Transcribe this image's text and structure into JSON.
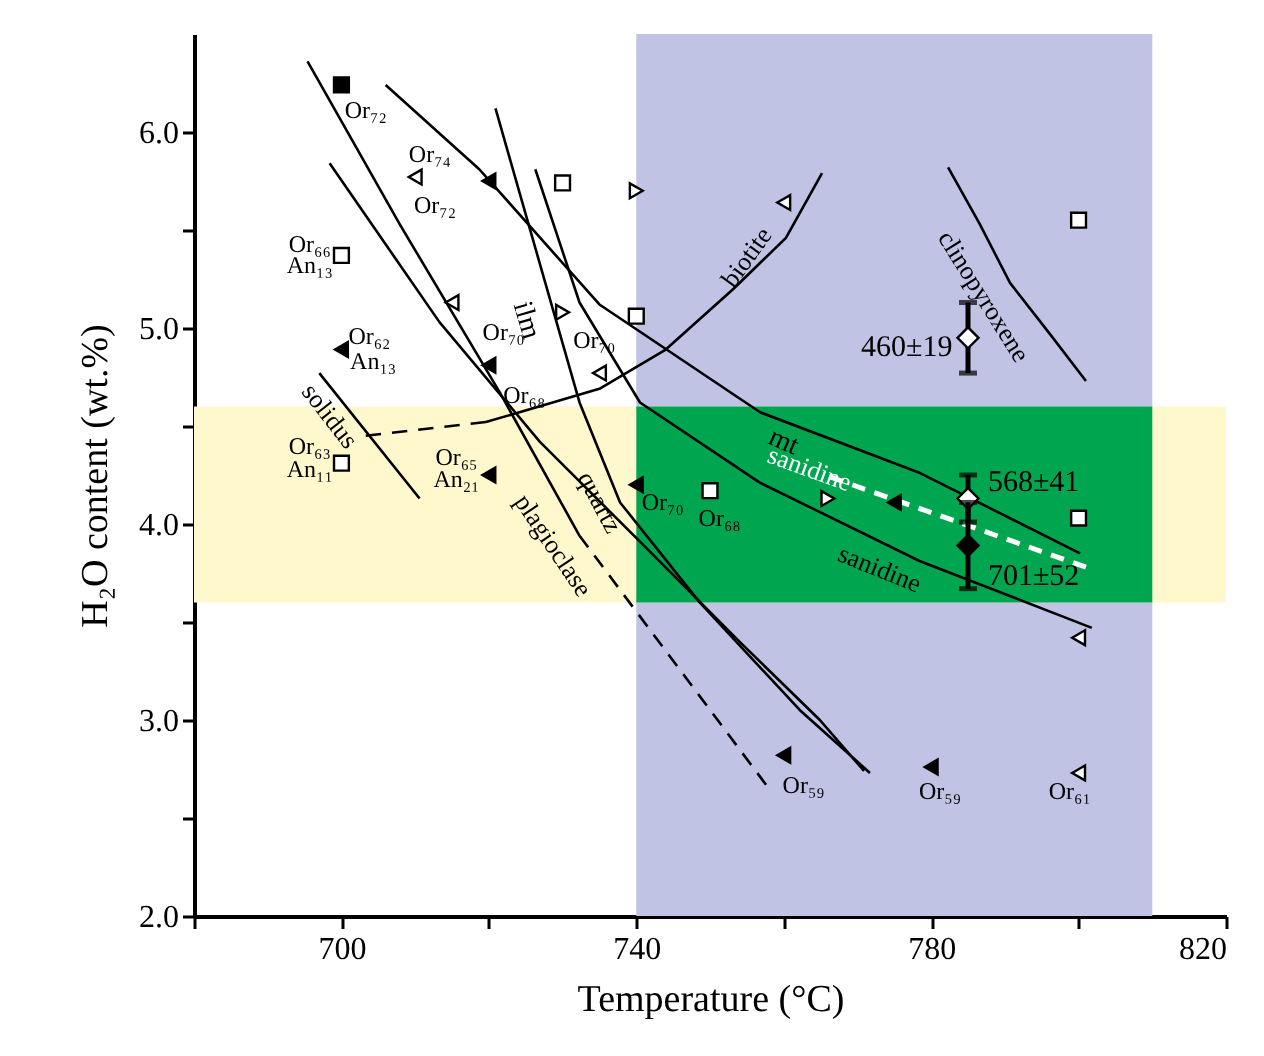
{
  "chart_data": {
    "type": "scatter",
    "xlabel": "Temperature (°C)",
    "ylabel": "H₂O content (wt.%)",
    "xlim": [
      680,
      820
    ],
    "ylim": [
      2,
      6.5
    ],
    "xticks": [
      {
        "value": 680,
        "label": null
      },
      700,
      {
        "value": 720,
        "label": null
      },
      740,
      {
        "value": 760,
        "label": null
      },
      780,
      {
        "value": 800,
        "label": null
      },
      820
    ],
    "yticks": [
      {
        "value": 2,
        "label": "2.0"
      },
      {
        "value": 2.5,
        "label": null
      },
      {
        "value": 3,
        "label": "3.0"
      },
      {
        "value": 3.5,
        "label": null
      },
      {
        "value": 4,
        "label": "4.0"
      },
      {
        "value": 4.5,
        "label": null
      },
      {
        "value": 5,
        "label": "5.0"
      },
      {
        "value": 5.5,
        "label": null
      },
      {
        "value": 6,
        "label": "6.0"
      }
    ],
    "grid": false,
    "bands": [
      {
        "axis": "x",
        "from": 740,
        "to": 810,
        "color": "#c0c3e3"
      },
      {
        "axis": "y",
        "from": 3.6,
        "to": 4.6,
        "color": "#fff8cc"
      }
    ],
    "series": [
      {
        "type": "line",
        "color": "#000000",
        "line_style": "solid",
        "x": [
          706.0,
          718.7,
          735.0,
          756.8,
          778.5,
          800.2
        ],
        "values": [
          6.24,
          5.81,
          5.12,
          4.57,
          4.26,
          3.85
        ]
      },
      {
        "type": "line",
        "color": "#000000",
        "line_style": "solid",
        "x": [
          726.3,
          732.3,
          740.5,
          756.8,
          778.5,
          801.8
        ],
        "values": [
          5.81,
          5.13,
          4.62,
          4.21,
          3.81,
          3.47
        ]
      },
      {
        "type": "line",
        "color": "#000000",
        "line_style": "solid",
        "x": [
          720.9,
          726.9,
          732.3,
          737.8,
          748.6,
          762.2,
          771.7
        ],
        "values": [
          6.12,
          5.33,
          4.62,
          4.11,
          3.6,
          3.05,
          2.73
        ]
      },
      {
        "type": "line",
        "color": "#000000",
        "line_style": "solid",
        "x": [
          698.4,
          713.3,
          726.9,
          740.5,
          754.0,
          764.9,
          770.9
        ],
        "values": [
          5.84,
          5.03,
          4.42,
          3.91,
          3.4,
          3.0,
          2.74
        ]
      },
      {
        "type": "line",
        "color": "#000000",
        "line_style": "solid",
        "x": [
          695.4,
          707.9,
          721.5,
          732.3
        ],
        "values": [
          6.36,
          5.53,
          4.67,
          3.94
        ]
      },
      {
        "type": "line",
        "color": "#000000",
        "line_style": "dashed",
        "x": [
          732.3,
          757.6
        ],
        "values": [
          3.94,
          2.67
        ]
      },
      {
        "type": "line",
        "color": "#000000",
        "line_style": "solid",
        "x": [
          697.0,
          710.6
        ],
        "values": [
          4.77,
          4.13
        ]
      },
      {
        "type": "line",
        "color": "#000000",
        "line_style": "dashed",
        "x": [
          703.3,
          719.6
        ],
        "values": [
          4.45,
          4.52
        ]
      },
      {
        "type": "line",
        "color": "#000000",
        "line_style": "solid",
        "x": [
          719.6,
          735.0,
          744.0,
          753.2,
          760.3,
          765.2
        ],
        "values": [
          4.52,
          4.69,
          4.89,
          5.2,
          5.46,
          5.79
        ]
      },
      {
        "type": "line",
        "color": "#000000",
        "line_style": "solid",
        "x": [
          782.3,
          786.6,
          790.7,
          796.1,
          801.0
        ],
        "values": [
          5.82,
          5.53,
          5.23,
          4.97,
          4.73
        ]
      },
      {
        "type": "line",
        "color": "#ffffff",
        "line_style": "dashed",
        "x": [
          766.3,
          801.0
        ],
        "values": [
          4.24,
          3.78
        ]
      },
      {
        "marker": "square",
        "color": "#000000",
        "x": [
          700
        ],
        "values": [
          6.24
        ]
      },
      {
        "marker": "square",
        "color": "#ffffff",
        "x": [
          730,
          700,
          740,
          700,
          750,
          800,
          800
        ],
        "values": [
          5.74,
          5.37,
          5.06,
          4.31,
          4.17,
          5.55,
          4.03
        ]
      },
      {
        "marker": "triangle-left",
        "color": "#000000",
        "x": [
          720,
          700,
          720,
          720,
          740,
          775,
          760,
          780
        ],
        "values": [
          5.75,
          4.89,
          4.81,
          4.25,
          4.2,
          4.11,
          2.82,
          2.76
        ]
      },
      {
        "marker": "triangle-left",
        "color": "#ffffff",
        "x": [
          710,
          715,
          735,
          760,
          800,
          800
        ],
        "values": [
          5.77,
          5.13,
          4.77,
          5.64,
          3.42,
          2.73
        ]
      },
      {
        "marker": "triangle-right",
        "color": "#ffffff",
        "x": [
          740,
          730,
          766
        ],
        "values": [
          5.7,
          5.08,
          4.13
        ]
      },
      {
        "marker": "diamond",
        "color": "#ffffff",
        "x": [
          785,
          785
        ],
        "values": [
          4.95,
          4.13
        ],
        "errors": [
          0.18,
          0.12
        ]
      },
      {
        "marker": "diamond",
        "color": "#000000",
        "x": [
          785
        ],
        "values": [
          3.89
        ],
        "errors": [
          0.22
        ]
      }
    ],
    "annotations": [
      "solidus",
      "plagioclase",
      "quartz",
      "ilm",
      "mt",
      "biotite",
      "clinopyroxene",
      "sanidine",
      "sanidine",
      "Or₇₂",
      "Or₇₂",
      "Or₇₄",
      "Or₆₆",
      "An₁₃",
      "Or₇₀",
      "Or₆₂",
      "An₁₃",
      "Or₆₈",
      "Or₇₀",
      "Or₆₃",
      "An₁₁",
      "Or₆₅",
      "An₂₁",
      "Or₇₀",
      "Or₆₈",
      "Or₅₉",
      "Or₅₉",
      "Or₆₁",
      "460±19",
      "568±41",
      "701±52"
    ]
  }
}
